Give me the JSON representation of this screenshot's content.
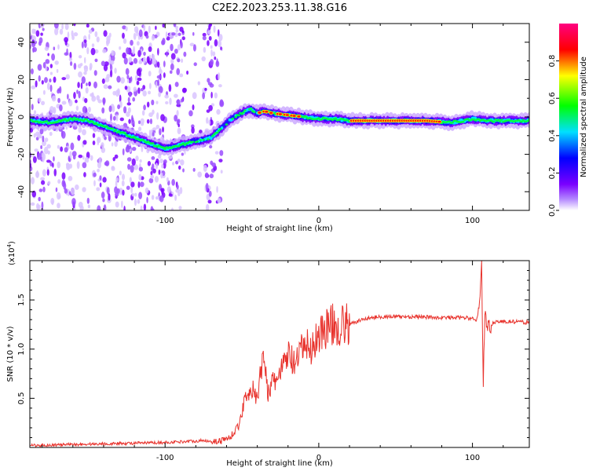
{
  "title": "C2E2.2023.253.11.38.G16",
  "chart_data": [
    {
      "type": "heatmap",
      "xlabel": "Height of straight line (km)",
      "ylabel": "Frequency (Hz)",
      "xlim": [
        -188,
        137
      ],
      "ylim": [
        -50,
        50
      ],
      "x_ticks": [
        -100,
        0,
        100
      ],
      "y_ticks": [
        -40,
        -20,
        0,
        20,
        40
      ],
      "colorbar": {
        "label": "Normalized spectral amplitude",
        "range": [
          0,
          1
        ],
        "ticks": [
          0.0,
          0.2,
          0.4,
          0.6,
          0.8
        ],
        "colors": [
          "#ffffff",
          "#8a00ff",
          "#0000ff",
          "#00e0ff",
          "#00ff00",
          "#ffff00",
          "#ff0000",
          "#ff0080"
        ]
      },
      "ridge": {
        "x": [
          -188,
          -175,
          -160,
          -150,
          -100,
          -90,
          -80,
          -70,
          -62,
          -55,
          -48,
          -44,
          -40,
          -35,
          -30,
          -20,
          -10,
          0,
          10,
          20,
          40,
          70,
          85,
          95,
          100,
          110,
          120,
          137
        ],
        "y": [
          -2,
          -3,
          -1,
          -2,
          -17,
          -15,
          -13,
          -11,
          -5,
          0,
          3,
          4,
          2,
          3,
          2,
          1,
          0,
          -1,
          -1,
          -2,
          -2,
          -2,
          -3,
          -2,
          -1,
          -2,
          -2,
          -2
        ]
      },
      "noise_region": [
        -188,
        -63
      ]
    },
    {
      "type": "line",
      "xlabel": "Height of straight line (km)",
      "ylabel": "SNR (10 * v/v)",
      "y_multiplier": "(x10",
      "y_multiplier_exp": "4",
      "xlim": [
        -188,
        137
      ],
      "ylim": [
        0,
        1.9
      ],
      "x_ticks": [
        -100,
        0,
        100
      ],
      "y_ticks": [
        0.5,
        1.0,
        1.5
      ],
      "color": "#e8322c",
      "series": {
        "x": [
          -188,
          -160,
          -130,
          -100,
          -75,
          -65,
          -58,
          -52,
          -48,
          -44,
          -40,
          -37,
          -35,
          -33,
          -30,
          -25,
          -20,
          -15,
          -10,
          -5,
          0,
          5,
          10,
          15,
          20,
          25,
          30,
          40,
          60,
          80,
          95,
          103,
          105,
          106,
          107,
          108,
          110,
          115,
          125,
          137
        ],
        "y": [
          0.02,
          0.03,
          0.04,
          0.05,
          0.07,
          0.06,
          0.1,
          0.22,
          0.5,
          0.62,
          0.48,
          0.85,
          0.9,
          0.55,
          0.65,
          0.75,
          0.95,
          0.82,
          1.05,
          1.0,
          1.15,
          1.22,
          1.25,
          1.24,
          1.25,
          1.28,
          1.31,
          1.33,
          1.33,
          1.32,
          1.32,
          1.3,
          1.55,
          1.85,
          0.65,
          1.35,
          1.22,
          1.28,
          1.28,
          1.27
        ]
      }
    }
  ]
}
